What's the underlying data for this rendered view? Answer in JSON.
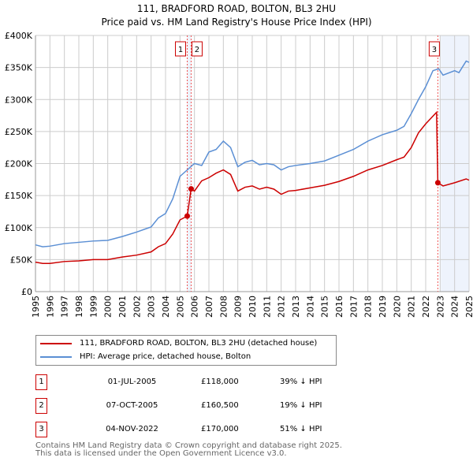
{
  "chart_data": {
    "type": "line",
    "title": "111, BRADFORD ROAD, BOLTON, BL3 2HU",
    "subtitle": "Price paid vs. HM Land Registry's House Price Index (HPI)",
    "xlim": [
      1995,
      2025
    ],
    "ylim": [
      0,
      400000
    ],
    "x_ticks": [
      "1995",
      "1996",
      "1997",
      "1998",
      "1999",
      "2000",
      "2001",
      "2002",
      "2003",
      "2004",
      "2005",
      "2006",
      "2007",
      "2008",
      "2009",
      "2010",
      "2011",
      "2012",
      "2013",
      "2014",
      "2015",
      "2016",
      "2017",
      "2018",
      "2019",
      "2020",
      "2021",
      "2022",
      "2023",
      "2024",
      "2025"
    ],
    "y_ticks": [
      {
        "v": 0,
        "l": "£0"
      },
      {
        "v": 50000,
        "l": "£50K"
      },
      {
        "v": 100000,
        "l": "£100K"
      },
      {
        "v": 150000,
        "l": "£150K"
      },
      {
        "v": 200000,
        "l": "£200K"
      },
      {
        "v": 250000,
        "l": "£250K"
      },
      {
        "v": 300000,
        "l": "£300K"
      },
      {
        "v": 350000,
        "l": "£350K"
      },
      {
        "v": 400000,
        "l": "£400K"
      }
    ],
    "grid": true,
    "shaded_from": 2023.05,
    "series": [
      {
        "name": "111, BRADFORD ROAD, BOLTON, BL3 2HU (detached house)",
        "color": "#cc0000",
        "x": [
          1995,
          1995.5,
          1996,
          1997,
          1998,
          1999,
          2000,
          2001,
          2002,
          2003,
          2003.5,
          2004,
          2004.5,
          2005,
          2005.5,
          2005.77,
          2006,
          2006.5,
          2007,
          2007.5,
          2008,
          2008.5,
          2009,
          2009.5,
          2010,
          2010.5,
          2011,
          2011.5,
          2012,
          2012.5,
          2013,
          2014,
          2015,
          2016,
          2017,
          2018,
          2019,
          2020,
          2020.5,
          2021,
          2021.5,
          2022,
          2022.75,
          2022.84,
          2023.2,
          2024,
          2024.8,
          2025
        ],
        "y": [
          46000,
          44000,
          44000,
          47000,
          48000,
          50000,
          50000,
          54000,
          57000,
          62000,
          70000,
          75000,
          90000,
          112000,
          118000,
          160500,
          157000,
          173000,
          178000,
          185000,
          190000,
          183000,
          157000,
          163000,
          165000,
          160000,
          163000,
          160000,
          152000,
          157000,
          158000,
          162000,
          166000,
          172000,
          180000,
          190000,
          197000,
          206000,
          210000,
          225000,
          248000,
          262000,
          280000,
          170000,
          165000,
          170000,
          176000,
          174000
        ]
      },
      {
        "name": "HPI: Average price, detached house, Bolton",
        "color": "#5b8fd4",
        "x": [
          1995,
          1995.5,
          1996,
          1997,
          1998,
          1999,
          2000,
          2001,
          2002,
          2003,
          2003.5,
          2004,
          2004.5,
          2005,
          2005.5,
          2006,
          2006.5,
          2007,
          2007.5,
          2008,
          2008.5,
          2009,
          2009.5,
          2010,
          2010.5,
          2011,
          2011.5,
          2012,
          2012.5,
          2013,
          2014,
          2015,
          2016,
          2017,
          2018,
          2018.5,
          2019,
          2020,
          2020.5,
          2021,
          2021.5,
          2022,
          2022.5,
          2022.9,
          2023.2,
          2024,
          2024.3,
          2024.8,
          2025
        ],
        "y": [
          73000,
          70000,
          71000,
          75000,
          77000,
          79000,
          80000,
          86000,
          93000,
          101000,
          115000,
          122000,
          145000,
          180000,
          190000,
          200000,
          197000,
          218000,
          222000,
          235000,
          225000,
          195000,
          202000,
          205000,
          198000,
          200000,
          198000,
          190000,
          195000,
          197000,
          200000,
          204000,
          213000,
          222000,
          235000,
          240000,
          245000,
          252000,
          258000,
          278000,
          300000,
          320000,
          345000,
          348000,
          338000,
          345000,
          342000,
          360000,
          358000
        ]
      }
    ],
    "sales": [
      {
        "n": "1",
        "x": 2005.5,
        "y": 118000,
        "date": "01-JUL-2005",
        "price": "£118,000",
        "hpi": "39% ↓ HPI"
      },
      {
        "n": "2",
        "x": 2005.77,
        "y": 160500,
        "date": "07-OCT-2005",
        "price": "£160,500",
        "hpi": "19% ↓ HPI"
      },
      {
        "n": "3",
        "x": 2022.84,
        "y": 170000,
        "date": "04-NOV-2022",
        "price": "£170,000",
        "hpi": "51% ↓ HPI"
      }
    ]
  },
  "footer": {
    "line1": "Contains HM Land Registry data © Crown copyright and database right 2025.",
    "line2": "This data is licensed under the Open Government Licence v3.0."
  }
}
